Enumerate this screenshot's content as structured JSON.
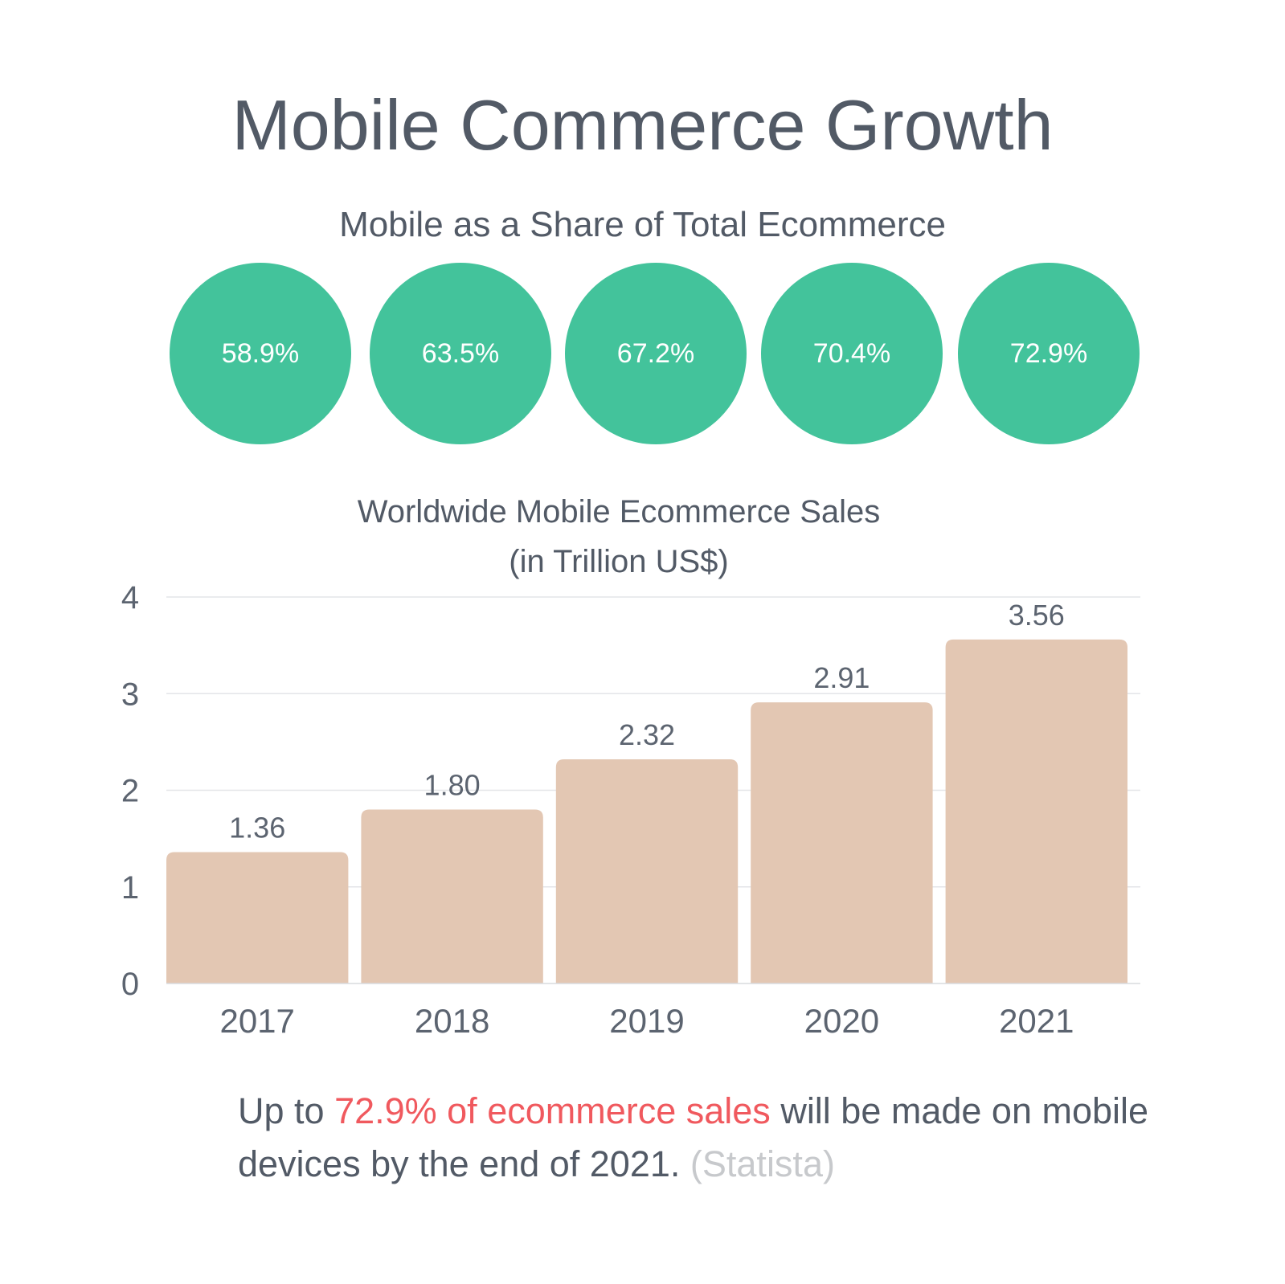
{
  "title": "Mobile Commerce Growth",
  "share_section": {
    "title": "Mobile as a Share of Total Ecommerce",
    "circle_color": "#43c39b",
    "values": [
      "58.9%",
      "63.5%",
      "67.2%",
      "70.4%",
      "72.9%"
    ]
  },
  "chart_data": {
    "type": "bar",
    "title_line1": "Worldwide Mobile Ecommerce Sales",
    "title_line2": "(in Trillion US$)",
    "categories": [
      "2017",
      "2018",
      "2019",
      "2020",
      "2021"
    ],
    "values": [
      1.36,
      1.8,
      2.32,
      2.91,
      3.56
    ],
    "value_labels": [
      "1.36",
      "1.80",
      "2.32",
      "2.91",
      "3.56"
    ],
    "y_ticks": [
      "0",
      "1",
      "2",
      "3",
      "4"
    ],
    "ylim": [
      0,
      4
    ],
    "grid": true,
    "bar_color": "#e3c7b3",
    "xlabel": "",
    "ylabel": ""
  },
  "takeaway": {
    "prefix": "Up to ",
    "highlight": "72.9% of ecommerce sales",
    "suffix": " will be made on mobile devices by the end of 2021. ",
    "source": "(Statista)",
    "highlight_color": "#f0595e"
  }
}
